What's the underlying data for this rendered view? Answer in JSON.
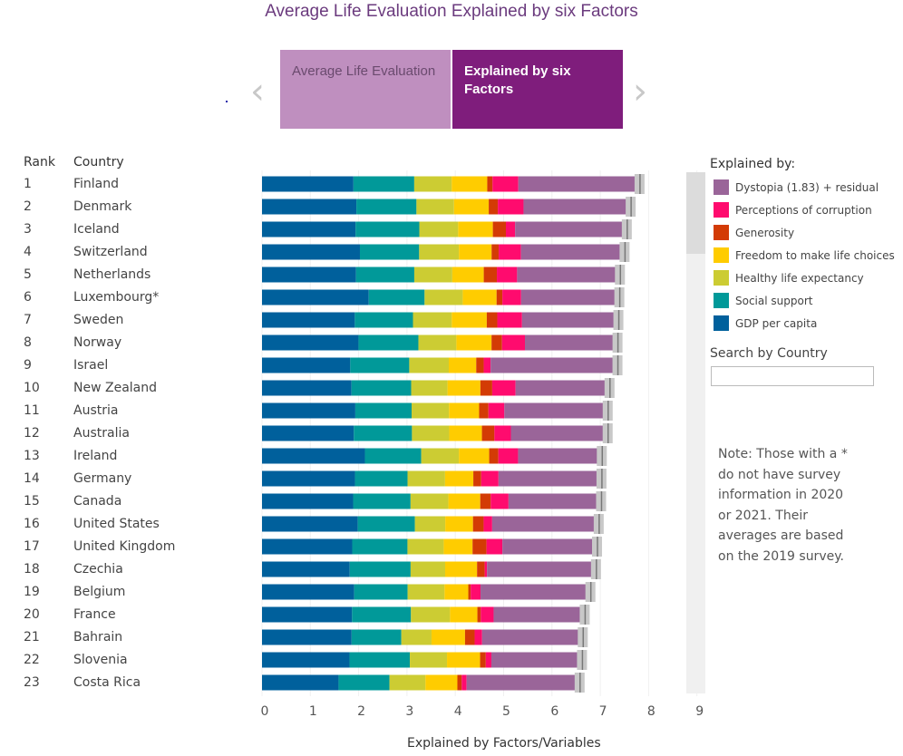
{
  "title": "Average Life Evaluation Explained by six Factors",
  "tabs": [
    {
      "label": "Average Life Evaluation",
      "active": false
    },
    {
      "label": "Explained by six Factors",
      "active": true
    }
  ],
  "nav": {
    "prev_icon": "chevron-left-icon",
    "next_icon": "chevron-right-icon"
  },
  "headers": {
    "rank": "Rank",
    "country": "Country"
  },
  "legend": {
    "title": "Explained by:",
    "items": [
      {
        "label": "Dystopia (1.83) + residual",
        "color": "#9a6599"
      },
      {
        "label": "Perceptions of corruption",
        "color": "#ff0b6e"
      },
      {
        "label": "Generosity",
        "color": "#d33b05"
      },
      {
        "label": "Freedom to make life choices",
        "color": "#ffcc00"
      },
      {
        "label": "Healthy life expectancy",
        "color": "#cccc33"
      },
      {
        "label": "Social support",
        "color": "#019999"
      },
      {
        "label": "GDP per capita",
        "color": "#00609c"
      }
    ]
  },
  "search": {
    "label": "Search by Country",
    "value": ""
  },
  "note": "Note: Those with a * do not have survey information in 2020 or 2021. Their averages are based on the 2019 survey.",
  "chart_data": {
    "type": "bar",
    "stacked": true,
    "orientation": "horizontal",
    "xlabel": "Explained by Factors/Variables",
    "xlim": [
      0,
      9
    ],
    "xticks": [
      "0",
      "1",
      "2",
      "3",
      "4",
      "5",
      "6",
      "7",
      "8",
      "9"
    ],
    "grid": true,
    "legend_position": "right",
    "series_order": [
      "GDP per capita",
      "Social support",
      "Healthy life expectancy",
      "Freedom to make life choices",
      "Generosity",
      "Perceptions of corruption",
      "Dystopia (1.83) + residual"
    ],
    "rows": [
      {
        "rank": "1",
        "country": "Finland",
        "values": [
          1.892,
          1.258,
          0.775,
          0.736,
          0.109,
          0.534,
          2.518
        ]
      },
      {
        "rank": "2",
        "country": "Denmark",
        "values": [
          1.953,
          1.243,
          0.777,
          0.719,
          0.188,
          0.532,
          2.226
        ]
      },
      {
        "rank": "3",
        "country": "Iceland",
        "values": [
          1.936,
          1.32,
          0.803,
          0.718,
          0.27,
          0.191,
          2.32
        ]
      },
      {
        "rank": "4",
        "country": "Switzerland",
        "values": [
          2.026,
          1.226,
          0.822,
          0.677,
          0.147,
          0.461,
          2.153
        ]
      },
      {
        "rank": "5",
        "country": "Netherlands",
        "values": [
          1.945,
          1.206,
          0.787,
          0.651,
          0.271,
          0.419,
          2.137
        ]
      },
      {
        "rank": "6",
        "country": "Luxembourg*",
        "values": [
          2.209,
          1.155,
          0.79,
          0.7,
          0.12,
          0.388,
          2.042
        ]
      },
      {
        "rank": "7",
        "country": "Sweden",
        "values": [
          1.92,
          1.204,
          0.803,
          0.724,
          0.218,
          0.512,
          2.003
        ]
      },
      {
        "rank": "8",
        "country": "Norway",
        "values": [
          1.997,
          1.239,
          0.786,
          0.728,
          0.217,
          0.474,
          1.925
        ]
      },
      {
        "rank": "9",
        "country": "Israel",
        "values": [
          1.826,
          1.221,
          0.818,
          0.568,
          0.155,
          0.143,
          2.634
        ]
      },
      {
        "rank": "10",
        "country": "New Zealand",
        "values": [
          1.852,
          1.235,
          0.752,
          0.68,
          0.245,
          0.483,
          1.954
        ]
      },
      {
        "rank": "11",
        "country": "Austria",
        "values": [
          1.931,
          1.165,
          0.774,
          0.623,
          0.193,
          0.329,
          2.148
        ]
      },
      {
        "rank": "12",
        "country": "Australia",
        "values": [
          1.9,
          1.203,
          0.772,
          0.676,
          0.258,
          0.341,
          2.012
        ]
      },
      {
        "rank": "13",
        "country": "Ireland",
        "values": [
          2.129,
          1.166,
          0.779,
          0.627,
          0.19,
          0.408,
          1.742
        ]
      },
      {
        "rank": "14",
        "country": "Germany",
        "values": [
          1.924,
          1.088,
          0.776,
          0.585,
          0.163,
          0.358,
          2.14
        ]
      },
      {
        "rank": "15",
        "country": "Canada",
        "values": [
          1.886,
          1.188,
          0.783,
          0.659,
          0.217,
          0.368,
          1.925
        ]
      },
      {
        "rank": "16",
        "country": "United States",
        "values": [
          1.982,
          1.182,
          0.628,
          0.574,
          0.22,
          0.177,
          2.214
        ]
      },
      {
        "rank": "17",
        "country": "United Kingdom",
        "values": [
          1.867,
          1.143,
          0.75,
          0.597,
          0.289,
          0.329,
          1.967
        ]
      },
      {
        "rank": "18",
        "country": "Czechia",
        "values": [
          1.815,
          1.26,
          0.715,
          0.66,
          0.158,
          0.048,
          2.264
        ]
      },
      {
        "rank": "19",
        "country": "Belgium",
        "values": [
          1.907,
          1.106,
          0.764,
          0.492,
          0.049,
          0.204,
          2.283
        ]
      },
      {
        "rank": "20",
        "country": "France",
        "values": [
          1.863,
          1.219,
          0.808,
          0.567,
          0.07,
          0.266,
          1.894
        ]
      },
      {
        "rank": "21",
        "country": "Bahrain",
        "values": [
          1.854,
          1.029,
          0.625,
          0.693,
          0.199,
          0.155,
          2.092
        ]
      },
      {
        "rank": "22",
        "country": "Slovenia",
        "values": [
          1.81,
          1.249,
          0.769,
          0.685,
          0.118,
          0.115,
          1.885
        ]
      },
      {
        "rank": "23",
        "country": "Costa Rica",
        "values": [
          1.584,
          1.054,
          0.744,
          0.661,
          0.089,
          0.102,
          2.348
        ]
      }
    ]
  }
}
